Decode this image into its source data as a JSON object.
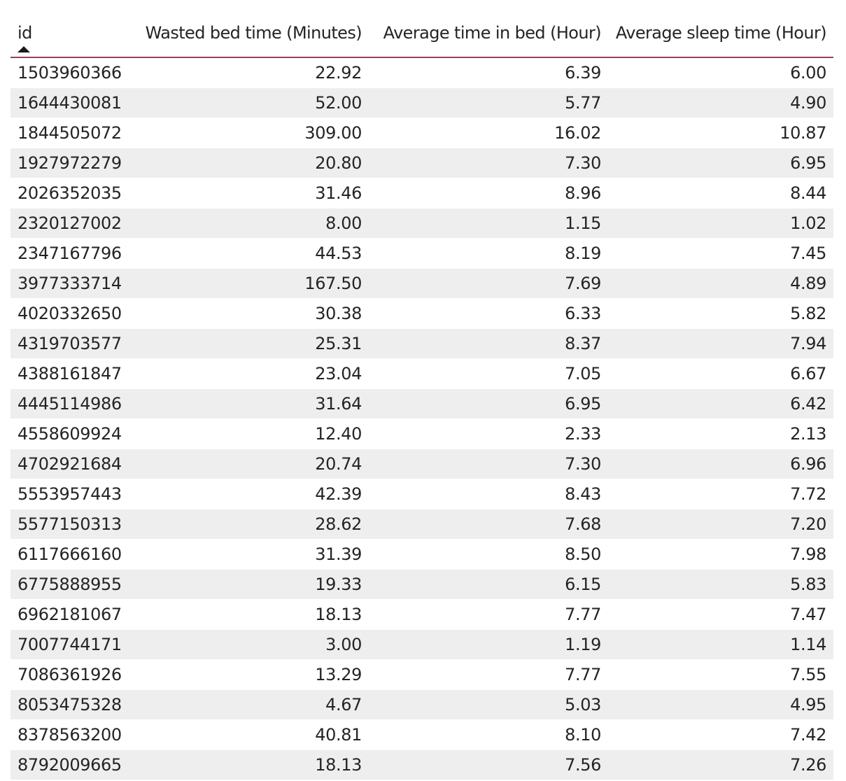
{
  "chart_data": {
    "type": "table",
    "columns": [
      "id",
      "Wasted bed time (Minutes)",
      "Average time in bed (Hour)",
      "Average sleep time (Hour)"
    ],
    "sort": {
      "column": "id",
      "direction": "ascending"
    },
    "rows": [
      [
        "1503960366",
        "22.92",
        "6.39",
        "6.00"
      ],
      [
        "1644430081",
        "52.00",
        "5.77",
        "4.90"
      ],
      [
        "1844505072",
        "309.00",
        "16.02",
        "10.87"
      ],
      [
        "1927972279",
        "20.80",
        "7.30",
        "6.95"
      ],
      [
        "2026352035",
        "31.46",
        "8.96",
        "8.44"
      ],
      [
        "2320127002",
        "8.00",
        "1.15",
        "1.02"
      ],
      [
        "2347167796",
        "44.53",
        "8.19",
        "7.45"
      ],
      [
        "3977333714",
        "167.50",
        "7.69",
        "4.89"
      ],
      [
        "4020332650",
        "30.38",
        "6.33",
        "5.82"
      ],
      [
        "4319703577",
        "25.31",
        "8.37",
        "7.94"
      ],
      [
        "4388161847",
        "23.04",
        "7.05",
        "6.67"
      ],
      [
        "4445114986",
        "31.64",
        "6.95",
        "6.42"
      ],
      [
        "4558609924",
        "12.40",
        "2.33",
        "2.13"
      ],
      [
        "4702921684",
        "20.74",
        "7.30",
        "6.96"
      ],
      [
        "5553957443",
        "42.39",
        "8.43",
        "7.72"
      ],
      [
        "5577150313",
        "28.62",
        "7.68",
        "7.20"
      ],
      [
        "6117666160",
        "31.39",
        "8.50",
        "7.98"
      ],
      [
        "6775888955",
        "19.33",
        "6.15",
        "5.83"
      ],
      [
        "6962181067",
        "18.13",
        "7.77",
        "7.47"
      ],
      [
        "7007744171",
        "3.00",
        "1.19",
        "1.14"
      ],
      [
        "7086361926",
        "13.29",
        "7.77",
        "7.55"
      ],
      [
        "8053475328",
        "4.67",
        "5.03",
        "4.95"
      ],
      [
        "8378563200",
        "40.81",
        "8.10",
        "7.42"
      ],
      [
        "8792009665",
        "18.13",
        "7.56",
        "7.26"
      ]
    ],
    "colors": {
      "header_rule": "#9e3a64",
      "stripe": "#eeeeee",
      "text": "#252423"
    }
  }
}
